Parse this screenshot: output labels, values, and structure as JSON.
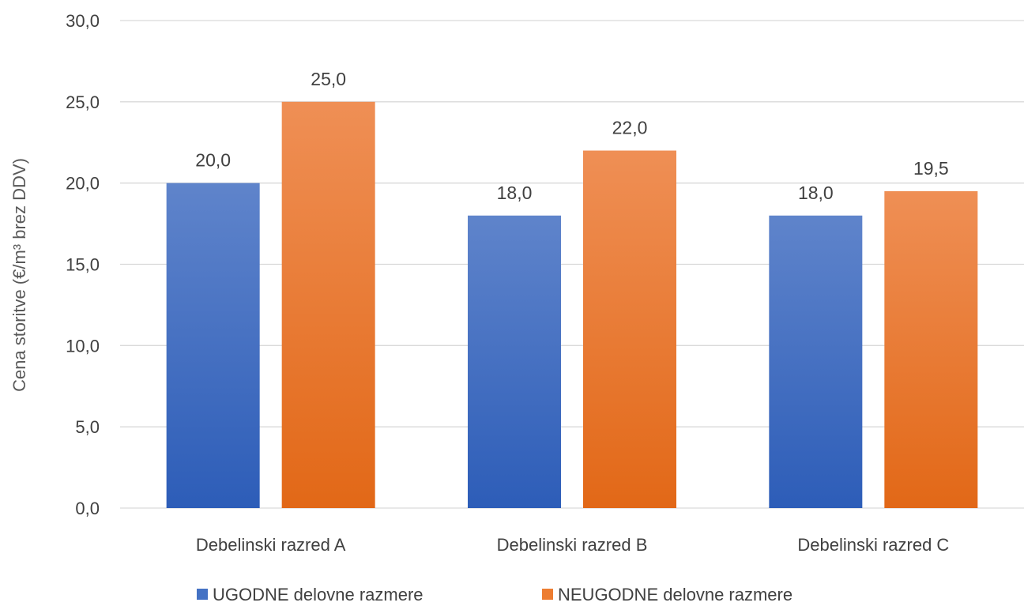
{
  "chart_data": {
    "type": "bar",
    "title": "",
    "xlabel": "",
    "ylabel": "Cena storitve (€/m³ brez DDV)",
    "ylim": [
      0,
      30
    ],
    "yticks": [
      "0,0",
      "5,0",
      "10,0",
      "15,0",
      "20,0",
      "25,0",
      "30,0"
    ],
    "categories": [
      "Debelinski razred A",
      "Debelinski razred B",
      "Debelinski razred C"
    ],
    "series": [
      {
        "name": "UGODNE delovne razmere",
        "values": [
          20.0,
          18.0,
          18.0
        ],
        "labels": [
          "20,0",
          "18,0",
          "18,0"
        ],
        "color": "#4472c4"
      },
      {
        "name": "NEUGODNE delovne razmere",
        "values": [
          25.0,
          22.0,
          19.5
        ],
        "labels": [
          "25,0",
          "22,0",
          "19,5"
        ],
        "color": "#ed7d31"
      }
    ],
    "grid": true,
    "legend": "bottom"
  }
}
